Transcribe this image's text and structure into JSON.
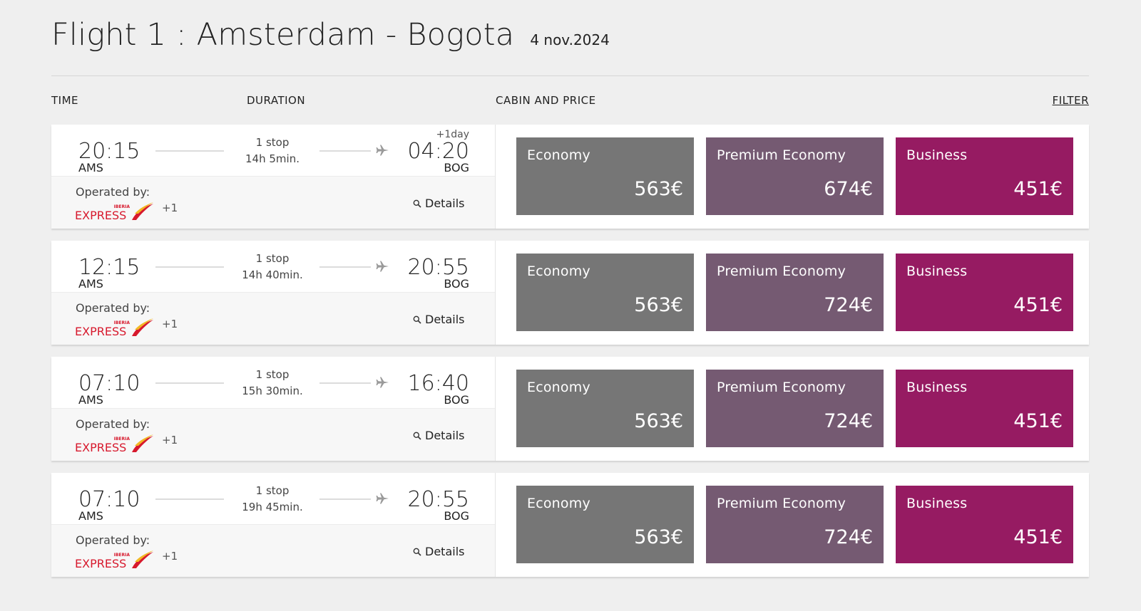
{
  "header": {
    "title": "Flight 1 : Amsterdam - Bogota",
    "date": "4 nov.2024"
  },
  "columns": {
    "time": "TIME",
    "duration": "DURATION",
    "cabin": "CABIN AND PRICE",
    "filter": "FILTER"
  },
  "colors": {
    "economy": "#767676",
    "premium_economy": "#755a72",
    "business": "#961b62",
    "logo_red": "#d7192d",
    "logo_yellow": "#f2b824"
  },
  "labels": {
    "operated_by": "Operated by:",
    "details": "Details",
    "logo_text": "EXPRESS",
    "logo_brand": "IBERIA"
  },
  "flights": [
    {
      "dep_time": "20:15",
      "dep_code": "AMS",
      "arr_time": "04:20",
      "arr_code": "BOG",
      "plus_day": "+1day",
      "stops": "1 stop",
      "duration": "14h 5min.",
      "operator_more": "+1",
      "cabins": [
        {
          "name": "Economy",
          "price": "563€"
        },
        {
          "name": "Premium Economy",
          "price": "674€"
        },
        {
          "name": "Business",
          "price": "451€"
        }
      ]
    },
    {
      "dep_time": "12:15",
      "dep_code": "AMS",
      "arr_time": "20:55",
      "arr_code": "BOG",
      "plus_day": "",
      "stops": "1 stop",
      "duration": "14h 40min.",
      "operator_more": "+1",
      "cabins": [
        {
          "name": "Economy",
          "price": "563€"
        },
        {
          "name": "Premium Economy",
          "price": "724€"
        },
        {
          "name": "Business",
          "price": "451€"
        }
      ]
    },
    {
      "dep_time": "07:10",
      "dep_code": "AMS",
      "arr_time": "16:40",
      "arr_code": "BOG",
      "plus_day": "",
      "stops": "1 stop",
      "duration": "15h 30min.",
      "operator_more": "+1",
      "cabins": [
        {
          "name": "Economy",
          "price": "563€"
        },
        {
          "name": "Premium Economy",
          "price": "724€"
        },
        {
          "name": "Business",
          "price": "451€"
        }
      ]
    },
    {
      "dep_time": "07:10",
      "dep_code": "AMS",
      "arr_time": "20:55",
      "arr_code": "BOG",
      "plus_day": "",
      "stops": "1 stop",
      "duration": "19h 45min.",
      "operator_more": "+1",
      "cabins": [
        {
          "name": "Economy",
          "price": "563€"
        },
        {
          "name": "Premium Economy",
          "price": "724€"
        },
        {
          "name": "Business",
          "price": "451€"
        }
      ]
    }
  ]
}
